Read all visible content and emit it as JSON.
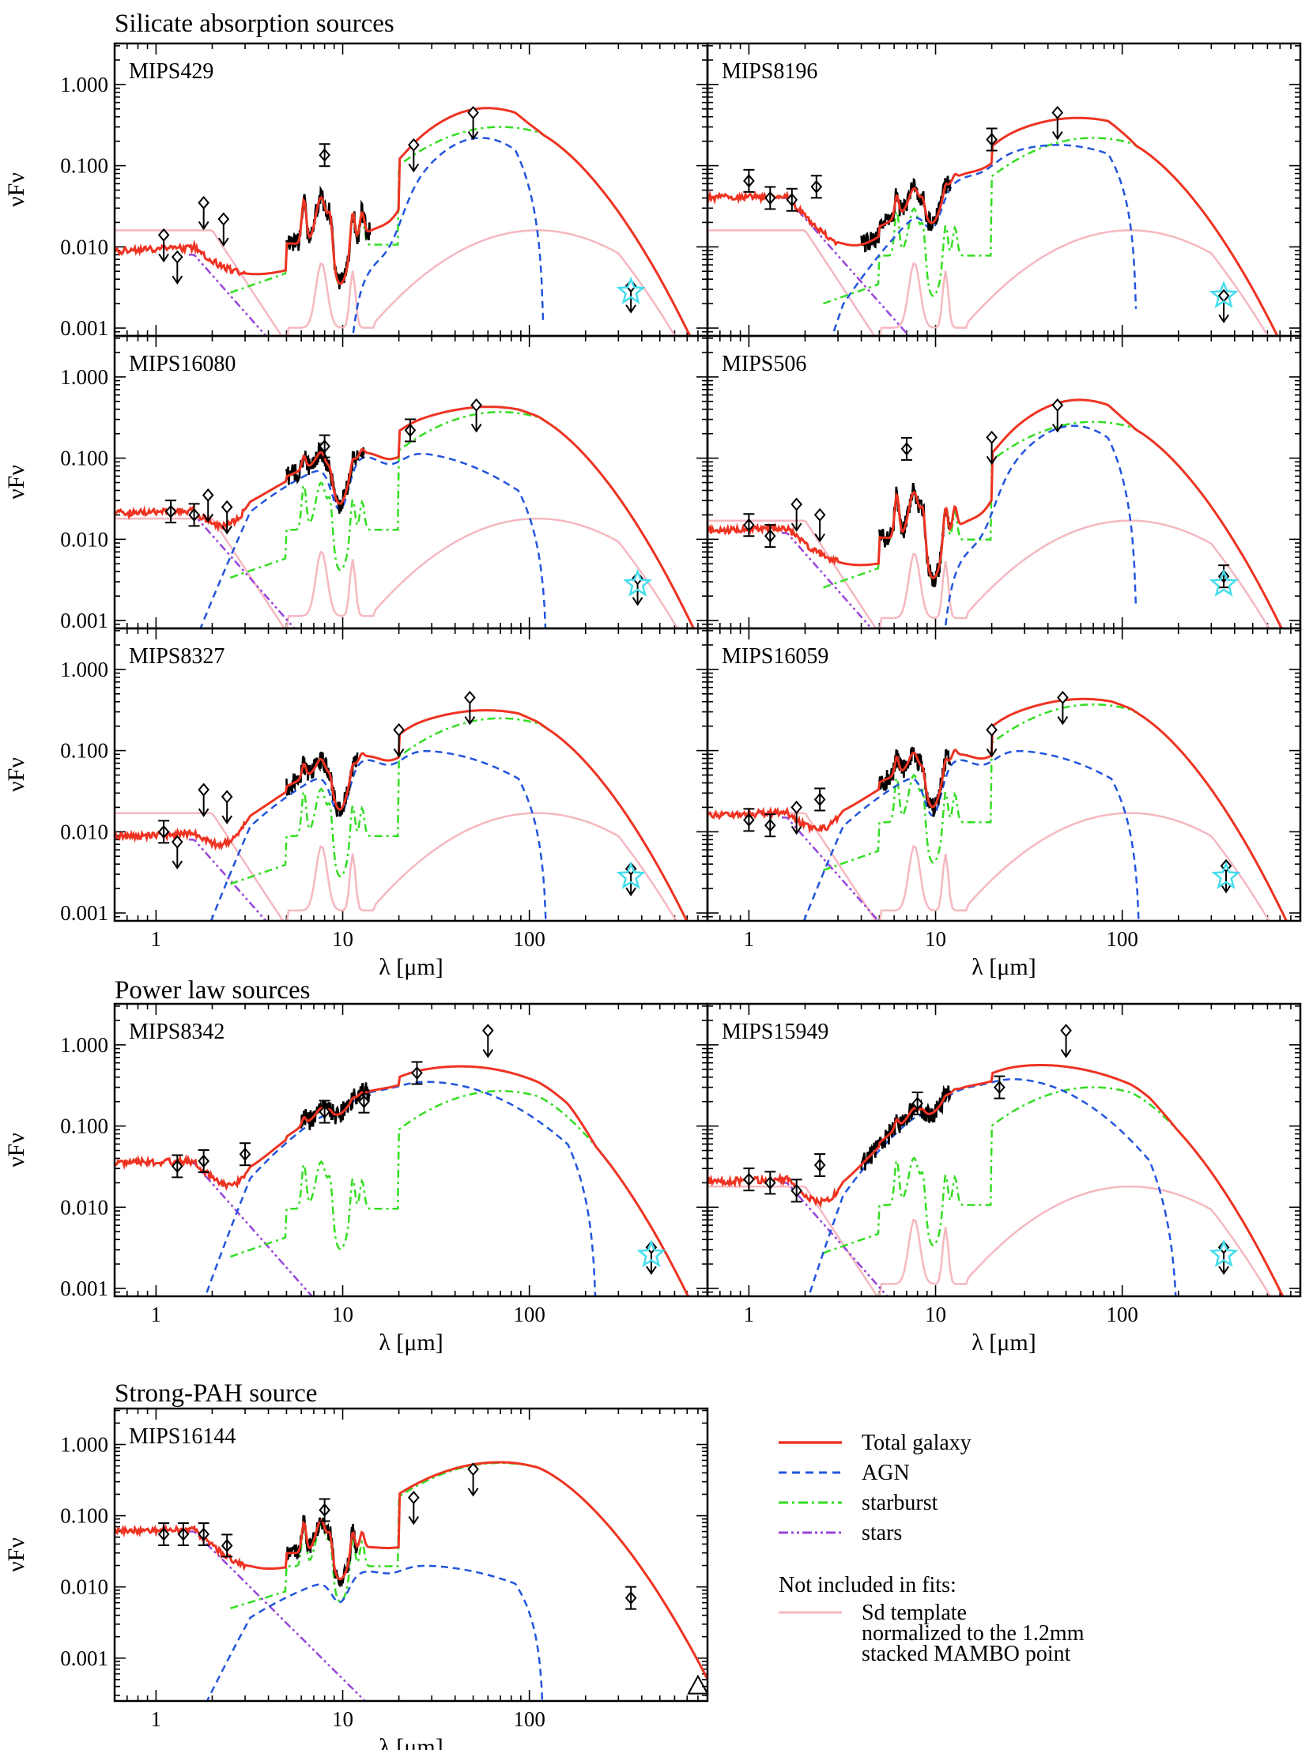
{
  "section_titles": [
    "Silicate absorption sources",
    "Power law sources",
    "Strong-PAH source"
  ],
  "colors": {
    "total": "#ee3322",
    "agn": "#2255dd",
    "starburst": "#33dd22",
    "stars": "#9944dd",
    "sd_template": "#f5b8c0",
    "irs": "#000000",
    "mambo_star": "#44ddee"
  },
  "axis": {
    "xlabel": "λ [μm]",
    "ylabel": "νFν",
    "x_scale": "log",
    "y_scale": "log",
    "xlim": [
      0.6,
      900
    ],
    "ylim": [
      0.0008,
      3.2
    ],
    "xticks": [
      1,
      10,
      100
    ],
    "xtick_labels": [
      "1",
      "10",
      "100"
    ],
    "yticks": [
      0.001,
      0.01,
      0.1,
      1.0
    ],
    "ytick_labels": [
      "0.001",
      "0.010",
      "0.100",
      "1.000"
    ]
  },
  "legend": {
    "items": [
      {
        "label": "Total galaxy",
        "style": "solid",
        "color": "#ee3322"
      },
      {
        "label": "AGN",
        "style": "dashed",
        "color": "#2255dd"
      },
      {
        "label": "starburst",
        "style": "dashdot",
        "color": "#33dd22"
      },
      {
        "label": "stars",
        "style": "dashdotdot",
        "color": "#9944dd"
      }
    ],
    "note_title": "Not included in fits:",
    "note_lines": [
      "Sd template",
      "normalized to the 1.2mm",
      "stacked MAMBO point"
    ]
  },
  "chart_data": [
    {
      "type": "line",
      "title": "MIPS429",
      "group": "Silicate absorption sources",
      "total_peak": [
        60,
        0.45
      ],
      "agn": {
        "peak": [
          55,
          0.22
        ],
        "width": 0.32,
        "cut": 120,
        "sil": 0.95
      },
      "sb_norm": 0.3,
      "stars_norm": 0.008,
      "sd_norm": 0.016,
      "irs_range": [
        5,
        14
      ],
      "photometry": [
        {
          "x": 1.1,
          "y": 0.014,
          "limit": true
        },
        {
          "x": 1.3,
          "y": 0.0075,
          "limit": true
        },
        {
          "x": 1.8,
          "y": 0.035,
          "limit": true
        },
        {
          "x": 2.3,
          "y": 0.022,
          "limit": true
        },
        {
          "x": 8.0,
          "y": 0.135,
          "limit": false
        },
        {
          "x": 24,
          "y": 0.18,
          "limit": true
        },
        {
          "x": 50,
          "y": 0.45,
          "limit": true
        },
        {
          "x": 350,
          "y": 0.0033,
          "limit": true
        }
      ],
      "mambo": {
        "x": 350,
        "y": 0.0028
      }
    },
    {
      "type": "line",
      "title": "MIPS8196",
      "group": "Silicate absorption sources",
      "total_peak": [
        70,
        0.22
      ],
      "agn": {
        "peak": [
          45,
          0.18
        ],
        "width": 0.55,
        "cut": 120,
        "sil": 0.3
      },
      "sb_norm": 0.22,
      "stars_norm": 0.04,
      "sd_norm": 0.016,
      "irs_range": [
        4,
        12
      ],
      "photometry": [
        {
          "x": 1.0,
          "y": 0.065,
          "limit": false
        },
        {
          "x": 1.3,
          "y": 0.04,
          "limit": false
        },
        {
          "x": 1.7,
          "y": 0.038,
          "limit": false
        },
        {
          "x": 2.3,
          "y": 0.055,
          "limit": false
        },
        {
          "x": 20,
          "y": 0.21,
          "limit": false
        },
        {
          "x": 45,
          "y": 0.45,
          "limit": true
        },
        {
          "x": 350,
          "y": 0.0025,
          "limit": true
        }
      ],
      "mambo": {
        "x": 350,
        "y": 0.0025
      }
    },
    {
      "type": "line",
      "title": "MIPS16080",
      "group": "Silicate absorption sources",
      "total_peak": [
        75,
        0.38
      ],
      "agn": {
        "peak": [
          20,
          0.12
        ],
        "width": 0.62,
        "cut": 125,
        "sil": 0.5
      },
      "sb_norm": 0.37,
      "stars_norm": 0.02,
      "sd_norm": 0.018,
      "irs_range": [
        5,
        13
      ],
      "photometry": [
        {
          "x": 1.2,
          "y": 0.022,
          "limit": false
        },
        {
          "x": 1.6,
          "y": 0.02,
          "limit": false
        },
        {
          "x": 1.9,
          "y": 0.035,
          "limit": true
        },
        {
          "x": 2.4,
          "y": 0.025,
          "limit": true
        },
        {
          "x": 8.0,
          "y": 0.14,
          "limit": false
        },
        {
          "x": 23,
          "y": 0.22,
          "limit": false
        },
        {
          "x": 52,
          "y": 0.45,
          "limit": true
        },
        {
          "x": 380,
          "y": 0.0033,
          "limit": true
        }
      ],
      "mambo": {
        "x": 380,
        "y": 0.0028
      }
    },
    {
      "type": "line",
      "title": "MIPS506",
      "group": "Silicate absorption sources",
      "total_peak": [
        60,
        0.48
      ],
      "agn": {
        "peak": [
          55,
          0.25
        ],
        "width": 0.32,
        "cut": 120,
        "sil": 0.95
      },
      "sb_norm": 0.28,
      "stars_norm": 0.012,
      "sd_norm": 0.017,
      "irs_range": [
        5,
        12
      ],
      "photometry": [
        {
          "x": 1.0,
          "y": 0.015,
          "limit": false
        },
        {
          "x": 1.3,
          "y": 0.011,
          "limit": false
        },
        {
          "x": 1.8,
          "y": 0.027,
          "limit": true
        },
        {
          "x": 2.4,
          "y": 0.02,
          "limit": true
        },
        {
          "x": 7.0,
          "y": 0.13,
          "limit": false
        },
        {
          "x": 20,
          "y": 0.18,
          "limit": true
        },
        {
          "x": 45,
          "y": 0.45,
          "limit": true
        },
        {
          "x": 350,
          "y": 0.0035,
          "limit": false
        }
      ],
      "mambo": {
        "x": 350,
        "y": 0.0028
      }
    },
    {
      "type": "line",
      "title": "MIPS8327",
      "group": "Silicate absorption sources",
      "total_peak": [
        70,
        0.28
      ],
      "agn": {
        "peak": [
          25,
          0.1
        ],
        "width": 0.62,
        "cut": 125,
        "sil": 0.5
      },
      "sb_norm": 0.25,
      "stars_norm": 0.008,
      "sd_norm": 0.017,
      "irs_range": [
        5,
        12
      ],
      "photometry": [
        {
          "x": 1.1,
          "y": 0.01,
          "limit": false
        },
        {
          "x": 1.3,
          "y": 0.0075,
          "limit": true
        },
        {
          "x": 1.8,
          "y": 0.033,
          "limit": true
        },
        {
          "x": 2.4,
          "y": 0.027,
          "limit": true
        },
        {
          "x": 20,
          "y": 0.18,
          "limit": true
        },
        {
          "x": 48,
          "y": 0.45,
          "limit": true
        },
        {
          "x": 350,
          "y": 0.0035,
          "limit": true
        }
      ],
      "mambo": {
        "x": 350,
        "y": 0.0028
      }
    },
    {
      "type": "line",
      "title": "MIPS16059",
      "group": "Silicate absorption sources",
      "total_peak": [
        70,
        0.38
      ],
      "agn": {
        "peak": [
          25,
          0.1
        ],
        "width": 0.62,
        "cut": 125,
        "sil": 0.5
      },
      "sb_norm": 0.37,
      "stars_norm": 0.015,
      "sd_norm": 0.017,
      "irs_range": [
        5,
        12
      ],
      "photometry": [
        {
          "x": 1.0,
          "y": 0.014,
          "limit": false
        },
        {
          "x": 1.3,
          "y": 0.012,
          "limit": false
        },
        {
          "x": 1.8,
          "y": 0.02,
          "limit": true
        },
        {
          "x": 2.4,
          "y": 0.025,
          "limit": false
        },
        {
          "x": 20,
          "y": 0.18,
          "limit": true
        },
        {
          "x": 48,
          "y": 0.45,
          "limit": true
        },
        {
          "x": 360,
          "y": 0.0038,
          "limit": true
        }
      ],
      "mambo": {
        "x": 360,
        "y": 0.0028
      }
    },
    {
      "type": "line",
      "title": "MIPS8342",
      "group": "Power law sources",
      "total_peak": [
        30,
        0.38
      ],
      "agn": {
        "peak": [
          28,
          0.35
        ],
        "width": 0.58,
        "cut": 230,
        "sil": 0.1
      },
      "sb_norm": 0.27,
      "stars_norm": 0.035,
      "sd_norm": 0.0,
      "irs_range": [
        6,
        14
      ],
      "photometry": [
        {
          "x": 1.3,
          "y": 0.032,
          "limit": false
        },
        {
          "x": 1.8,
          "y": 0.037,
          "limit": false
        },
        {
          "x": 3.0,
          "y": 0.045,
          "limit": false
        },
        {
          "x": 8.0,
          "y": 0.15,
          "limit": false
        },
        {
          "x": 13,
          "y": 0.2,
          "limit": false
        },
        {
          "x": 25,
          "y": 0.45,
          "limit": false
        },
        {
          "x": 60,
          "y": 1.5,
          "limit": true
        },
        {
          "x": 450,
          "y": 0.0032,
          "limit": true
        }
      ],
      "mambo": {
        "x": 450,
        "y": 0.0026
      }
    },
    {
      "type": "line",
      "title": "MIPS15949",
      "group": "Power law sources",
      "total_peak": [
        70,
        0.38
      ],
      "agn": {
        "peak": [
          25,
          0.38
        ],
        "width": 0.5,
        "cut": 200,
        "sil": 0.1
      },
      "sb_norm": 0.3,
      "stars_norm": 0.02,
      "sd_norm": 0.018,
      "irs_range": [
        4,
        12
      ],
      "photometry": [
        {
          "x": 1.0,
          "y": 0.022,
          "limit": false
        },
        {
          "x": 1.3,
          "y": 0.02,
          "limit": false
        },
        {
          "x": 1.8,
          "y": 0.016,
          "limit": false
        },
        {
          "x": 2.4,
          "y": 0.033,
          "limit": false
        },
        {
          "x": 8.0,
          "y": 0.19,
          "limit": false
        },
        {
          "x": 22,
          "y": 0.3,
          "limit": false
        },
        {
          "x": 50,
          "y": 1.5,
          "limit": true
        },
        {
          "x": 350,
          "y": 0.0032,
          "limit": true
        }
      ],
      "mambo": {
        "x": 350,
        "y": 0.0026
      }
    },
    {
      "type": "line",
      "title": "MIPS16144",
      "group": "Strong-PAH source",
      "total_peak": [
        70,
        0.55
      ],
      "agn": {
        "peak": [
          25,
          0.02
        ],
        "width": 0.7,
        "cut": 120,
        "sil": 0.3
      },
      "sb_norm": 0.55,
      "stars_norm": 0.06,
      "sd_norm": 0.0,
      "irs_range": [
        5,
        12
      ],
      "photometry": [
        {
          "x": 1.1,
          "y": 0.055,
          "limit": false
        },
        {
          "x": 1.4,
          "y": 0.055,
          "limit": false
        },
        {
          "x": 1.8,
          "y": 0.055,
          "limit": false
        },
        {
          "x": 2.4,
          "y": 0.038,
          "limit": false
        },
        {
          "x": 8.0,
          "y": 0.12,
          "limit": false
        },
        {
          "x": 24,
          "y": 0.18,
          "limit": true
        },
        {
          "x": 50,
          "y": 0.45,
          "limit": true
        },
        {
          "x": 350,
          "y": 0.007,
          "limit": false
        }
      ],
      "triangle": {
        "x": 800,
        "y": 0.0004
      }
    }
  ]
}
